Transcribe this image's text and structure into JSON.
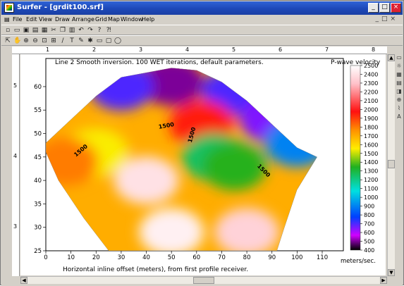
{
  "window": {
    "title": "Surfer - [grdit100.srf]"
  },
  "menu": [
    "File",
    "Edit",
    "View",
    "Draw",
    "Arrange",
    "Grid",
    "Map",
    "Window",
    "Help"
  ],
  "toolbar1_icons": [
    "new-icon",
    "open-icon",
    "save-icon",
    "print-icon",
    "print-preview-icon",
    "cut-icon",
    "copy-icon",
    "paste-icon",
    "undo-icon",
    "redo-icon",
    "help-icon",
    "context-help-icon"
  ],
  "toolbar2_icons": [
    "select-icon",
    "pan-icon",
    "zoom-in-icon",
    "zoom-out-icon",
    "zoom-rect-icon",
    "zoom-page-icon",
    "polyline-icon",
    "text-icon",
    "pen-icon",
    "symbol-icon",
    "rectangle-icon",
    "rounded-rect-icon",
    "ellipse-icon"
  ],
  "hruler_labels": [
    "1",
    "2",
    "3",
    "4",
    "5",
    "6",
    "7",
    "8"
  ],
  "vruler_labels": [
    "5",
    "4",
    "3"
  ],
  "chart_data": {
    "type": "heatmap",
    "title": "Line 2 Smooth inversion. 100 WET iterations, default parameters.",
    "xlabel": "Horizontal inline offset (meters), from first profile receiver.",
    "ylabel": "",
    "xlim": [
      0,
      110
    ],
    "ylim": [
      25,
      66
    ],
    "xticks": [
      0,
      10,
      20,
      30,
      40,
      50,
      60,
      70,
      80,
      90,
      100,
      110
    ],
    "yticks": [
      25,
      30,
      35,
      40,
      45,
      50,
      55,
      60
    ],
    "colorbar": {
      "title": "P-wave velocity",
      "unit": "meters/sec.",
      "min": 400,
      "max": 2500,
      "ticks": [
        2500,
        2400,
        2300,
        2200,
        2100,
        2000,
        1900,
        1800,
        1700,
        1600,
        1500,
        1400,
        1300,
        1200,
        1100,
        1000,
        900,
        800,
        700,
        600,
        500,
        400
      ]
    },
    "contour_labels": [
      "1500",
      "1500",
      "1500",
      "1500"
    ],
    "boundary": [
      [
        0,
        48
      ],
      [
        10,
        53
      ],
      [
        20,
        58
      ],
      [
        30,
        62
      ],
      [
        40,
        63
      ],
      [
        50,
        64
      ],
      [
        60,
        63.5
      ],
      [
        70,
        61
      ],
      [
        80,
        57
      ],
      [
        90,
        52
      ],
      [
        100,
        47
      ],
      [
        108,
        45
      ],
      [
        100,
        38
      ],
      [
        95,
        30
      ],
      [
        92,
        25
      ],
      [
        25,
        25
      ],
      [
        15,
        32
      ],
      [
        5,
        40
      ],
      [
        0,
        46
      ]
    ],
    "blobs": [
      {
        "x": 50,
        "y": 61,
        "v": 500
      },
      {
        "x": 30,
        "y": 60,
        "v": 700
      },
      {
        "x": 75,
        "y": 59,
        "v": 700
      },
      {
        "x": 90,
        "y": 53,
        "v": 650
      },
      {
        "x": 100,
        "y": 48,
        "v": 900
      },
      {
        "x": 62,
        "y": 52,
        "v": 1950
      },
      {
        "x": 67,
        "y": 45,
        "v": 1250
      },
      {
        "x": 75,
        "y": 43,
        "v": 1350
      },
      {
        "x": 40,
        "y": 40,
        "v": 2400
      },
      {
        "x": 20,
        "y": 46,
        "v": 1550
      },
      {
        "x": 8,
        "y": 44,
        "v": 1800
      },
      {
        "x": 50,
        "y": 29,
        "v": 2450
      },
      {
        "x": 80,
        "y": 29,
        "v": 2350
      }
    ]
  }
}
